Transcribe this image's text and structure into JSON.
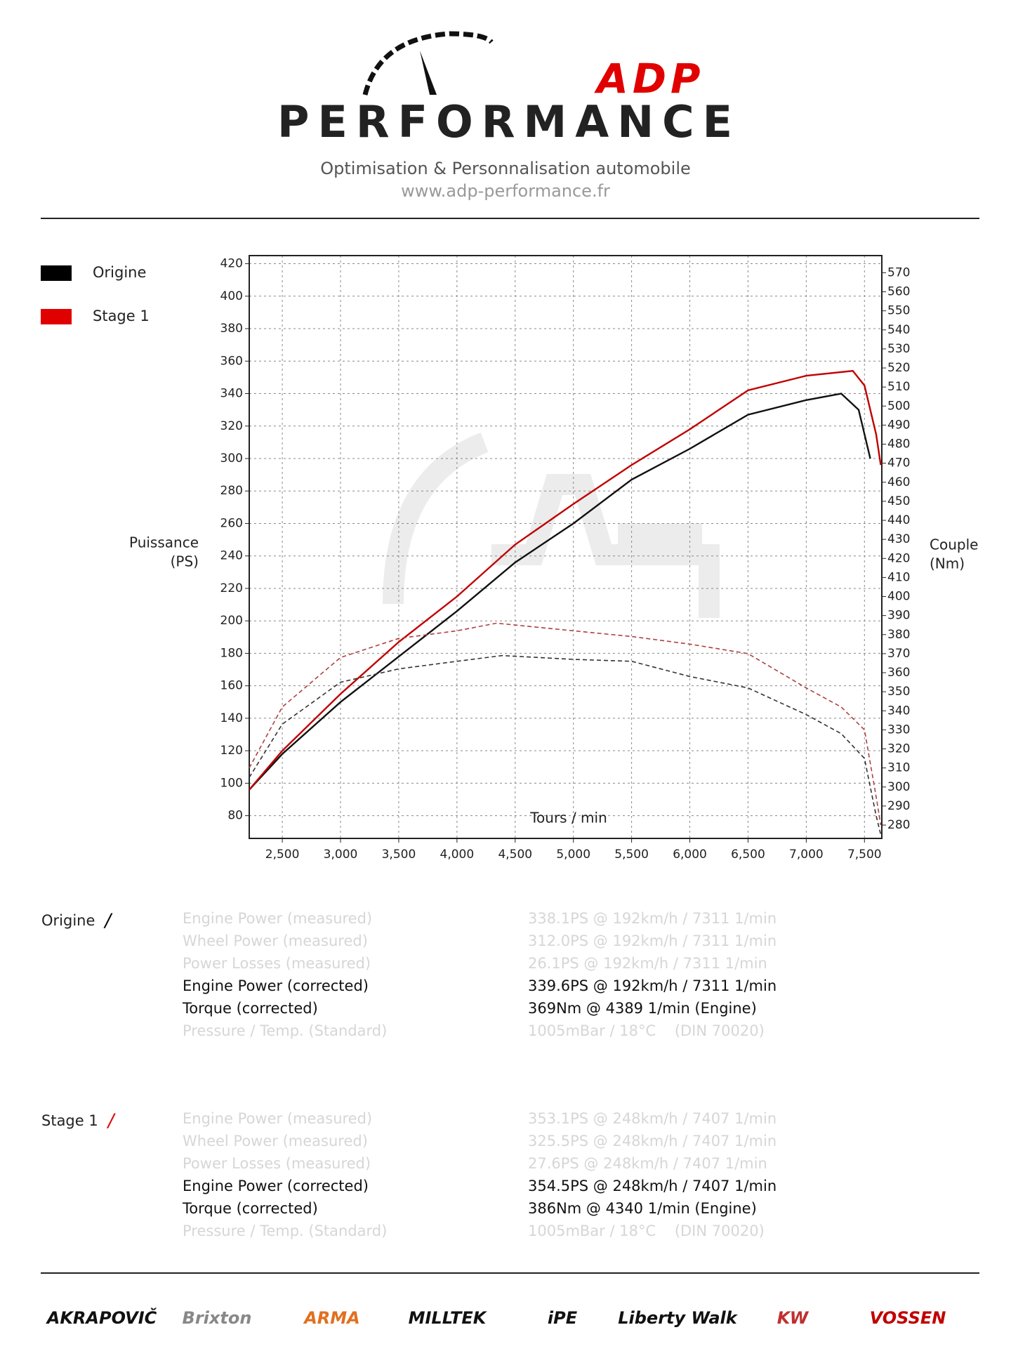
{
  "header": {
    "brand": "ADP",
    "name": "PERFORMANCE",
    "tagline": "Optimisation & Personnalisation automobile",
    "url": "www.adp-performance.fr"
  },
  "chart_data": {
    "type": "line",
    "x_label": "Tours / min",
    "y_label": [
      "Puissance",
      "(PS)"
    ],
    "y2_label": [
      "Couple",
      "(Nm)"
    ],
    "xlim": [
      2216,
      7649
    ],
    "ylim": [
      66,
      425
    ],
    "y2lim": [
      273,
      579
    ],
    "xticks": [
      {
        "value": 2500,
        "label": "2,500"
      },
      {
        "value": 3000,
        "label": "3,000"
      },
      {
        "value": 3500,
        "label": "3,500"
      },
      {
        "value": 4000,
        "label": "4,000"
      },
      {
        "value": 4500,
        "label": "4,500"
      },
      {
        "value": 5000,
        "label": "5,000"
      },
      {
        "value": 5500,
        "label": "5,500"
      },
      {
        "value": 6000,
        "label": "6,000"
      },
      {
        "value": 6500,
        "label": "6,500"
      },
      {
        "value": 7000,
        "label": "7,000"
      },
      {
        "value": 7500,
        "label": "7,500"
      }
    ],
    "yticks": [
      80,
      100,
      120,
      140,
      160,
      180,
      200,
      220,
      240,
      260,
      280,
      300,
      320,
      340,
      360,
      380,
      400,
      420
    ],
    "y2ticks": [
      280,
      290,
      300,
      310,
      320,
      330,
      340,
      350,
      360,
      370,
      380,
      390,
      400,
      410,
      420,
      430,
      440,
      450,
      460,
      470,
      480,
      490,
      500,
      510,
      520,
      530,
      540,
      550,
      560,
      570
    ],
    "grid": true,
    "legend": [
      {
        "name": "Origine",
        "color": "#000000"
      },
      {
        "name": "Stage 1",
        "color": "#e00000"
      }
    ],
    "series": [
      {
        "legend": 0,
        "color": "#111111",
        "style": "solid",
        "x": [
          2216,
          2500,
          3000,
          3500,
          4000,
          4500,
          5000,
          5500,
          6000,
          6500,
          7000,
          7300,
          7450,
          7550
        ],
        "values": [
          96,
          118,
          150,
          178,
          206,
          236,
          260,
          287,
          306,
          327,
          336,
          340,
          330,
          300
        ]
      },
      {
        "legend": 1,
        "color": "#c00000",
        "style": "solid",
        "x": [
          2216,
          2500,
          3000,
          3500,
          4000,
          4500,
          5000,
          5500,
          6000,
          6500,
          7000,
          7400,
          7500,
          7600,
          7640
        ],
        "values": [
          96,
          120,
          155,
          187,
          215,
          247,
          272,
          296,
          318,
          342,
          351,
          354,
          345,
          315,
          296
        ]
      },
      {
        "legend": 0,
        "color": "#333333",
        "style": "dashed",
        "axis": "y2",
        "x": [
          2216,
          2500,
          3000,
          3500,
          4000,
          4389,
          5000,
          5500,
          6000,
          6500,
          7000,
          7300,
          7500,
          7600,
          7640
        ],
        "values": [
          305,
          333,
          355,
          362,
          366,
          369,
          367,
          366,
          358,
          352,
          338,
          328,
          315,
          285,
          275
        ]
      },
      {
        "legend": 1,
        "color": "#b04040",
        "style": "dashed",
        "axis": "y2",
        "x": [
          2216,
          2500,
          3000,
          3500,
          4000,
          4340,
          5000,
          5500,
          6000,
          6500,
          7000,
          7300,
          7500,
          7600,
          7640
        ],
        "values": [
          310,
          342,
          368,
          378,
          382,
          386,
          382,
          379,
          375,
          370,
          352,
          342,
          330,
          295,
          280
        ]
      }
    ]
  },
  "results": [
    {
      "name": "Origine",
      "mark": "/",
      "mark_color": "#000000",
      "rows": [
        {
          "label": "Engine Power (measured)",
          "value": "338.1PS @ 192km/h / 7311 1/min",
          "highlight": false
        },
        {
          "label": "Wheel Power (measured)",
          "value": "312.0PS @ 192km/h / 7311 1/min",
          "highlight": false
        },
        {
          "label": "Power Losses (measured)",
          "value": "26.1PS @ 192km/h / 7311 1/min",
          "highlight": false
        },
        {
          "label": "Engine Power (corrected)",
          "value": "339.6PS @ 192km/h / 7311 1/min",
          "highlight": true
        },
        {
          "label": "Torque (corrected)",
          "value": "369Nm @ 4389 1/min (Engine)",
          "highlight": true
        },
        {
          "label": "Pressure / Temp. (Standard)",
          "value": "1005mBar / 18°C    (DIN 70020)",
          "highlight": false
        }
      ]
    },
    {
      "name": "Stage 1",
      "mark": "/",
      "mark_color": "#e00000",
      "rows": [
        {
          "label": "Engine Power (measured)",
          "value": "353.1PS @ 248km/h / 7407 1/min",
          "highlight": false
        },
        {
          "label": "Wheel Power (measured)",
          "value": "325.5PS @ 248km/h / 7407 1/min",
          "highlight": false
        },
        {
          "label": "Power Losses (measured)",
          "value": "27.6PS @ 248km/h / 7407 1/min",
          "highlight": false
        },
        {
          "label": "Engine Power (corrected)",
          "value": "354.5PS @ 248km/h / 7407 1/min",
          "highlight": true
        },
        {
          "label": "Torque (corrected)",
          "value": "386Nm @ 4340 1/min (Engine)",
          "highlight": true
        },
        {
          "label": "Pressure / Temp. (Standard)",
          "value": "1005mBar / 18°C    (DIN 70020)",
          "highlight": false
        }
      ]
    }
  ],
  "sponsors": [
    "AKRAPOVIČ",
    "Brixton",
    "ARMA",
    "MILLTEK",
    "iPE",
    "Liberty Walk",
    "KW",
    "VOSSEN"
  ]
}
